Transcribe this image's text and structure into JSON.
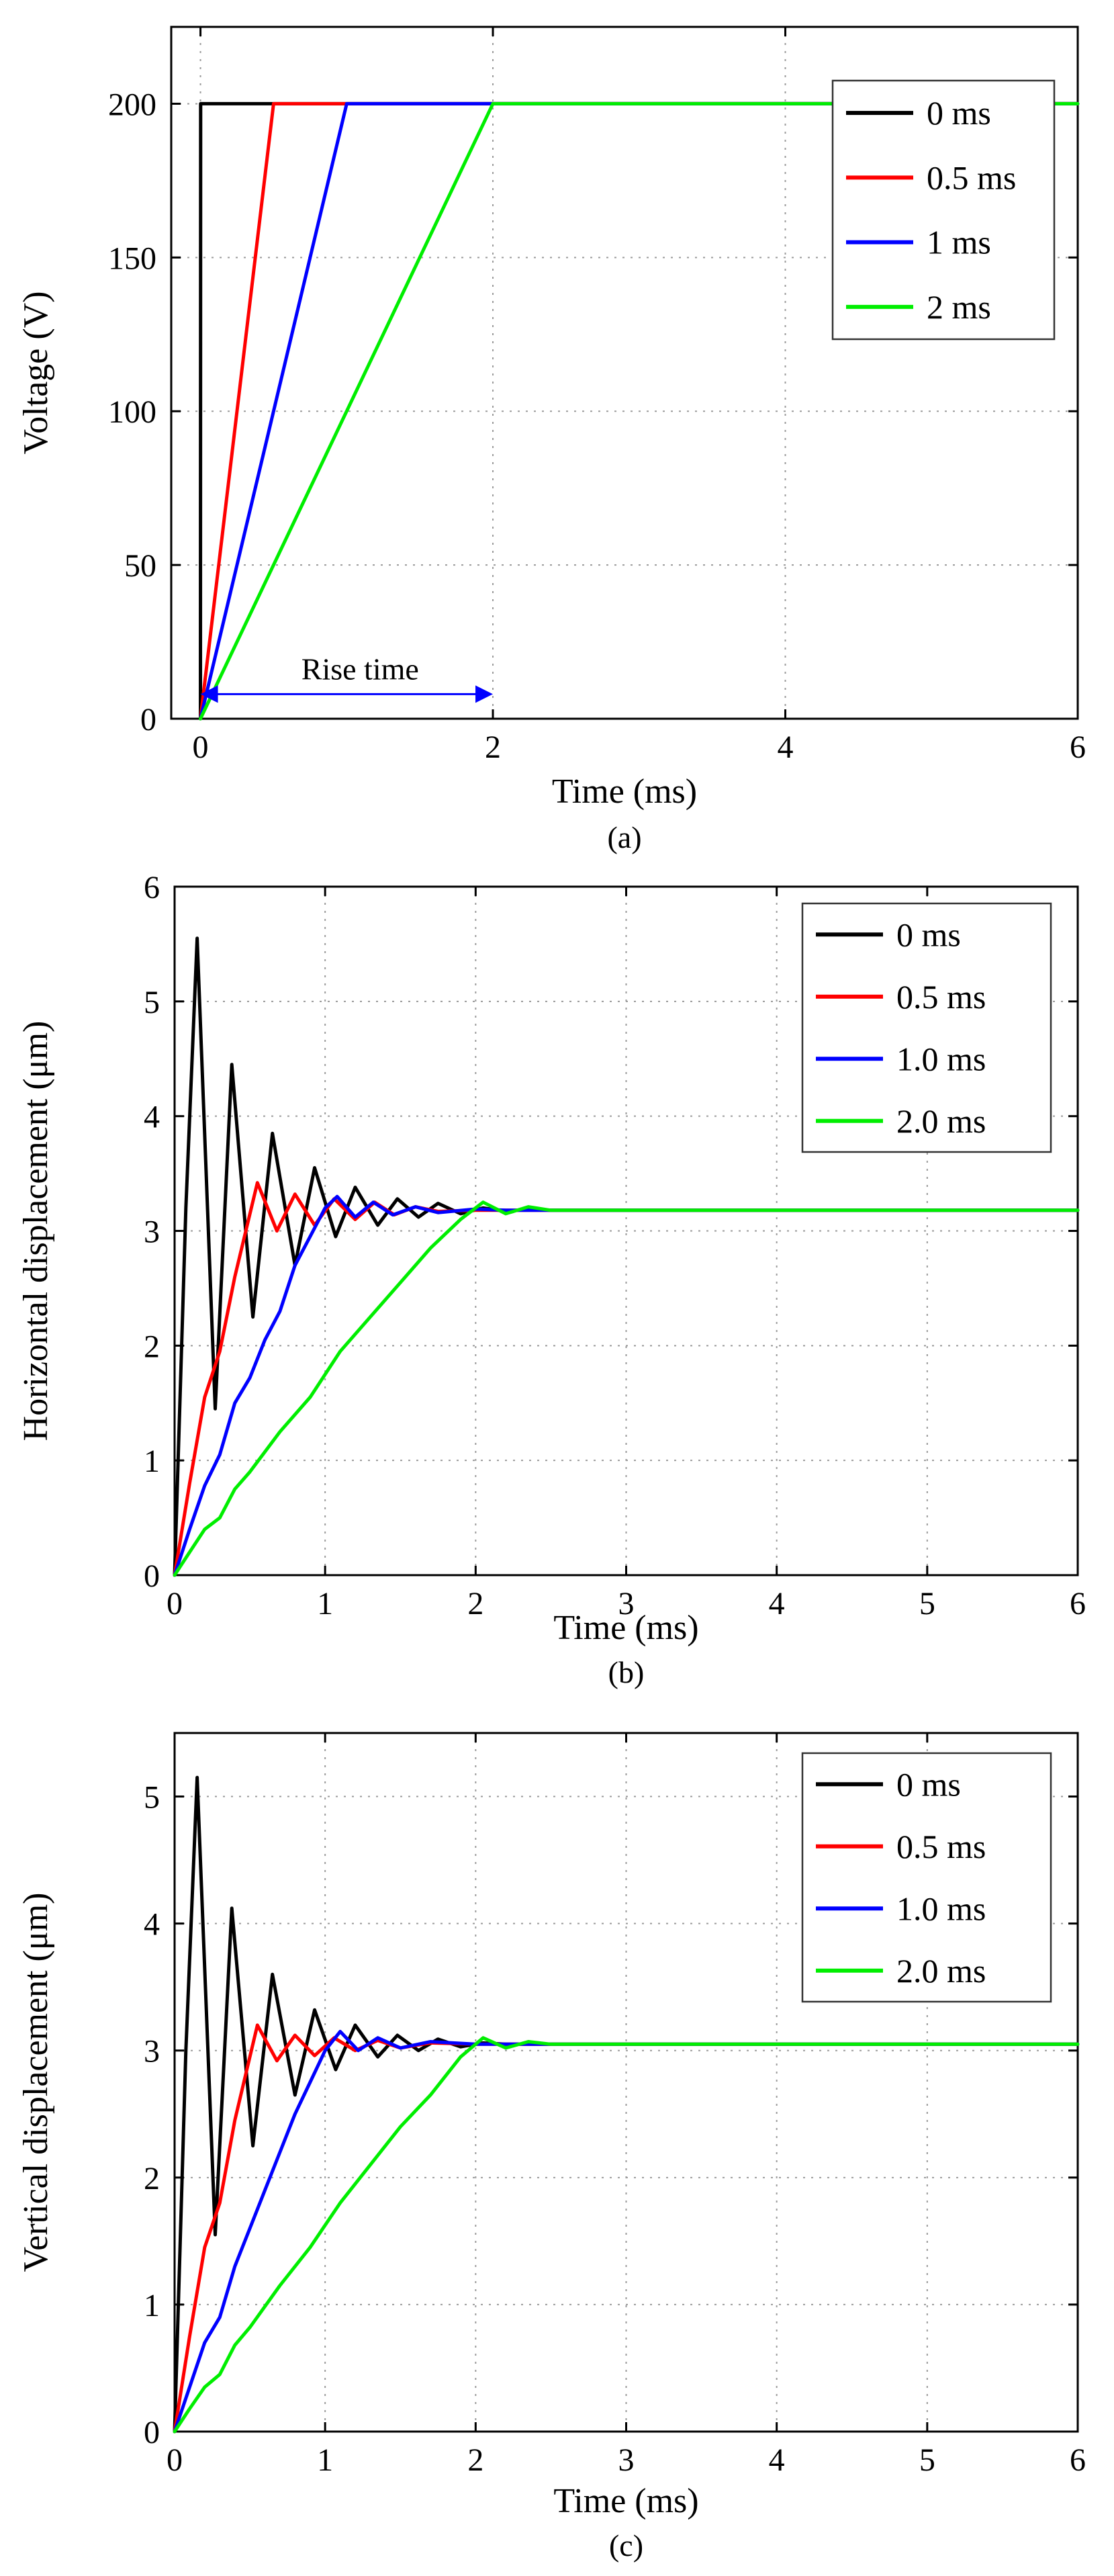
{
  "chart_data": [
    {
      "id": "a",
      "type": "line",
      "caption": "(a)",
      "xlabel": "Time (ms)",
      "ylabel": "Voltage (V)",
      "xlim": [
        -0.2,
        6
      ],
      "ylim": [
        0,
        225
      ],
      "xticks": [
        0,
        2,
        4,
        6
      ],
      "yticks": [
        0,
        50,
        100,
        150,
        200
      ],
      "grid": true,
      "legend_position": "top-right",
      "series": [
        {
          "name": "0 ms",
          "color": "#000000",
          "x": [
            0,
            0.001,
            6
          ],
          "y": [
            0,
            200,
            200
          ]
        },
        {
          "name": "0.5 ms",
          "color": "#ff0000",
          "x": [
            0,
            0.5,
            6
          ],
          "y": [
            0,
            200,
            200
          ]
        },
        {
          "name": "1 ms",
          "color": "#0000ff",
          "x": [
            0,
            1,
            6
          ],
          "y": [
            0,
            200,
            200
          ]
        },
        {
          "name": "2 ms",
          "color": "#00ee00",
          "x": [
            0,
            2,
            6
          ],
          "y": [
            0,
            200,
            200
          ]
        }
      ],
      "annotation": {
        "text": "Rise time",
        "x_from": 0,
        "x_to": 2,
        "y": 8
      }
    },
    {
      "id": "b",
      "type": "line",
      "caption": "(b)",
      "xlabel": "Time (ms)",
      "ylabel": "Horizontal displacement (μm)",
      "xlim": [
        0,
        6
      ],
      "ylim": [
        0,
        6
      ],
      "xticks": [
        0,
        1,
        2,
        3,
        4,
        5,
        6
      ],
      "yticks": [
        0,
        1,
        2,
        3,
        4,
        5,
        6
      ],
      "grid": true,
      "legend_position": "top-right",
      "series": [
        {
          "name": "0 ms",
          "color": "#000000",
          "x": [
            0,
            0.075,
            0.15,
            0.27,
            0.38,
            0.52,
            0.65,
            0.8,
            0.93,
            1.07,
            1.2,
            1.35,
            1.48,
            1.62,
            1.75,
            1.9,
            2.05,
            2.2,
            2.35,
            2.5,
            3.0,
            6
          ],
          "y": [
            0,
            3.2,
            5.55,
            1.45,
            4.45,
            2.25,
            3.85,
            2.7,
            3.55,
            2.95,
            3.38,
            3.05,
            3.28,
            3.12,
            3.24,
            3.15,
            3.2,
            3.17,
            3.19,
            3.18,
            3.18,
            3.18
          ]
        },
        {
          "name": "0.5 ms",
          "color": "#ff0000",
          "x": [
            0,
            0.1,
            0.2,
            0.3,
            0.4,
            0.55,
            0.68,
            0.8,
            0.93,
            1.06,
            1.2,
            1.33,
            1.46,
            1.6,
            1.75,
            2.0,
            6
          ],
          "y": [
            0,
            0.8,
            1.55,
            1.95,
            2.6,
            3.42,
            3.0,
            3.32,
            3.05,
            3.28,
            3.1,
            3.25,
            3.14,
            3.21,
            3.17,
            3.18,
            3.18
          ]
        },
        {
          "name": "1.0 ms",
          "color": "#0000ff",
          "x": [
            0,
            0.1,
            0.2,
            0.3,
            0.4,
            0.5,
            0.6,
            0.7,
            0.8,
            0.9,
            1.0,
            1.08,
            1.2,
            1.32,
            1.45,
            1.6,
            1.75,
            2.0,
            2.2,
            6
          ],
          "y": [
            0,
            0.4,
            0.78,
            1.05,
            1.5,
            1.72,
            2.05,
            2.3,
            2.7,
            2.95,
            3.2,
            3.3,
            3.12,
            3.25,
            3.14,
            3.21,
            3.16,
            3.19,
            3.18,
            3.18
          ]
        },
        {
          "name": "2.0 ms",
          "color": "#00ee00",
          "x": [
            0,
            0.1,
            0.2,
            0.3,
            0.4,
            0.5,
            0.7,
            0.9,
            1.1,
            1.3,
            1.5,
            1.7,
            1.9,
            2.05,
            2.2,
            2.35,
            2.5,
            6
          ],
          "y": [
            0,
            0.2,
            0.4,
            0.5,
            0.75,
            0.9,
            1.25,
            1.55,
            1.95,
            2.25,
            2.55,
            2.85,
            3.1,
            3.25,
            3.15,
            3.21,
            3.18,
            3.18
          ]
        }
      ]
    },
    {
      "id": "c",
      "type": "line",
      "caption": "(c)",
      "xlabel": "Time (ms)",
      "ylabel": "Vertical displacement (μm)",
      "xlim": [
        0,
        6
      ],
      "ylim": [
        0,
        5.5
      ],
      "xticks": [
        0,
        1,
        2,
        3,
        4,
        5,
        6
      ],
      "yticks": [
        0,
        1,
        2,
        3,
        4,
        5
      ],
      "grid": true,
      "legend_position": "top-right",
      "series": [
        {
          "name": "0 ms",
          "color": "#000000",
          "x": [
            0,
            0.075,
            0.15,
            0.27,
            0.38,
            0.52,
            0.65,
            0.8,
            0.93,
            1.07,
            1.2,
            1.35,
            1.48,
            1.62,
            1.75,
            1.9,
            2.05,
            2.2,
            2.5,
            3.0,
            6
          ],
          "y": [
            0,
            3.0,
            5.15,
            1.55,
            4.12,
            2.25,
            3.6,
            2.65,
            3.32,
            2.85,
            3.2,
            2.95,
            3.12,
            3.0,
            3.09,
            3.03,
            3.06,
            3.05,
            3.05,
            3.05,
            3.05
          ]
        },
        {
          "name": "0.5 ms",
          "color": "#ff0000",
          "x": [
            0,
            0.1,
            0.2,
            0.3,
            0.4,
            0.55,
            0.68,
            0.8,
            0.93,
            1.06,
            1.2,
            1.35,
            1.5,
            1.7,
            2.0,
            6
          ],
          "y": [
            0,
            0.75,
            1.45,
            1.8,
            2.45,
            3.2,
            2.92,
            3.12,
            2.96,
            3.1,
            3.0,
            3.08,
            3.02,
            3.06,
            3.05,
            3.05
          ]
        },
        {
          "name": "1.0 ms",
          "color": "#0000ff",
          "x": [
            0,
            0.1,
            0.2,
            0.3,
            0.4,
            0.5,
            0.6,
            0.7,
            0.8,
            0.9,
            1.0,
            1.1,
            1.22,
            1.35,
            1.5,
            1.7,
            2.0,
            6
          ],
          "y": [
            0,
            0.35,
            0.7,
            0.9,
            1.3,
            1.6,
            1.9,
            2.2,
            2.5,
            2.75,
            3.0,
            3.15,
            3.0,
            3.1,
            3.02,
            3.07,
            3.05,
            3.05
          ]
        },
        {
          "name": "2.0 ms",
          "color": "#00ee00",
          "x": [
            0,
            0.1,
            0.2,
            0.3,
            0.4,
            0.5,
            0.7,
            0.9,
            1.1,
            1.3,
            1.5,
            1.7,
            1.9,
            2.05,
            2.2,
            2.35,
            2.5,
            6
          ],
          "y": [
            0,
            0.18,
            0.35,
            0.45,
            0.68,
            0.82,
            1.15,
            1.45,
            1.8,
            2.1,
            2.4,
            2.65,
            2.95,
            3.1,
            3.02,
            3.07,
            3.05,
            3.05
          ]
        }
      ]
    }
  ]
}
